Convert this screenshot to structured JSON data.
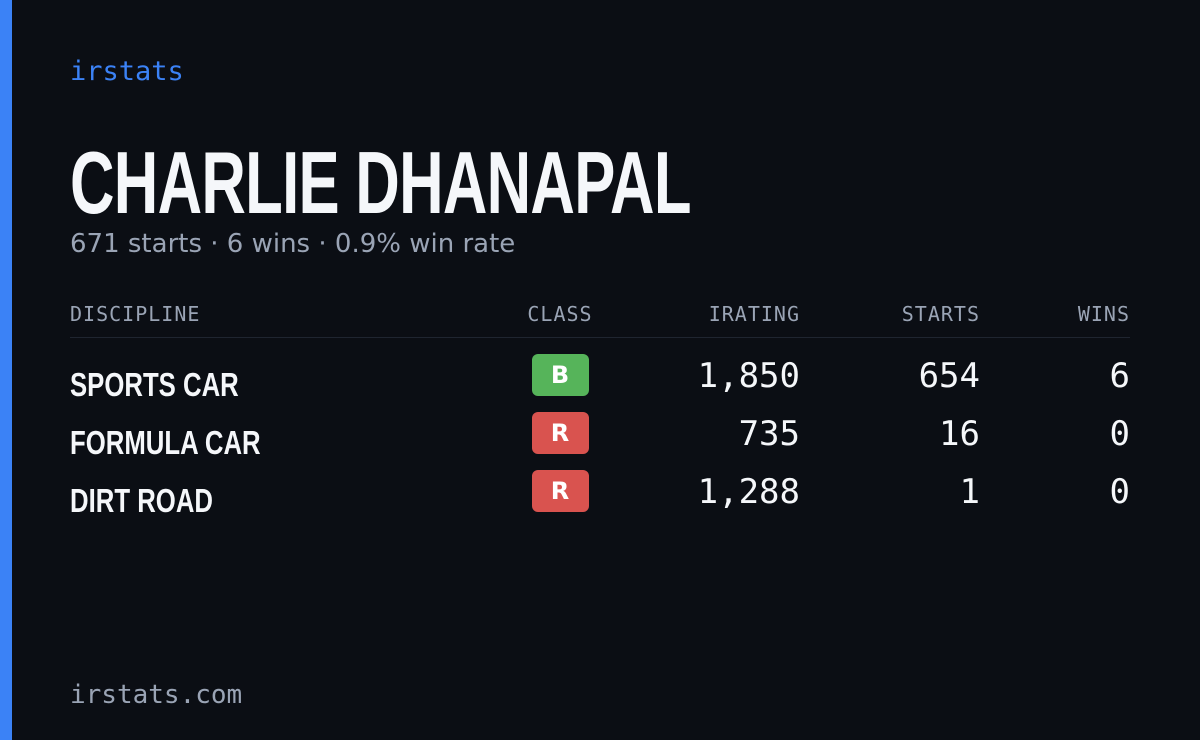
{
  "brand": "irstats",
  "header": {
    "name": "CHARLIE DHANAPAL",
    "summary": "671 starts · 6 wins · 0.9% win rate"
  },
  "table": {
    "columns": [
      "DISCIPLINE",
      "CLASS",
      "IRATING",
      "STARTS",
      "WINS"
    ],
    "rows": [
      {
        "discipline": "SPORTS CAR",
        "class": "B",
        "class_color": "#56b45a",
        "irating": "1,850",
        "starts": "654",
        "wins": "6"
      },
      {
        "discipline": "FORMULA CAR",
        "class": "R",
        "class_color": "#d9534f",
        "irating": "735",
        "starts": "16",
        "wins": "0"
      },
      {
        "discipline": "DIRT ROAD",
        "class": "R",
        "class_color": "#d9534f",
        "irating": "1,288",
        "starts": "1",
        "wins": "0"
      }
    ]
  },
  "footer": "irstats.com"
}
